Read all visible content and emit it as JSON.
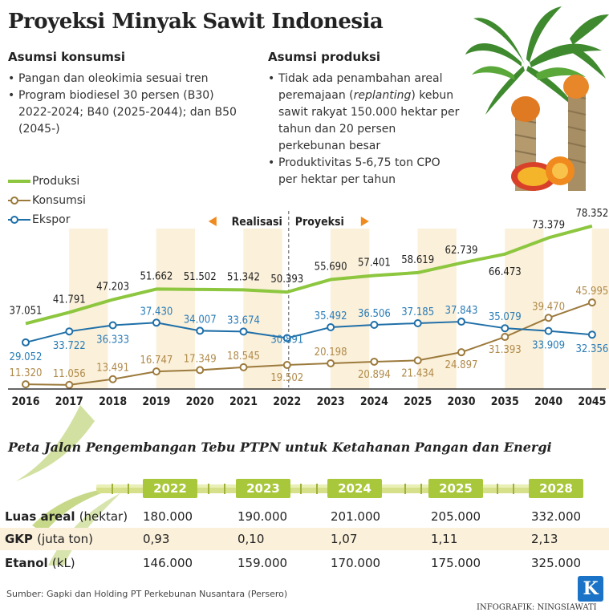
{
  "title": "Proyeksi Minyak Sawit Indonesia",
  "asumsi_konsumsi": {
    "heading": "Asumsi konsumsi",
    "items": [
      "Pangan dan oleokimia sesuai tren",
      "Program biodiesel 30 persen (B30) 2022-2024; B40 (2025-2044); dan B50 (2045-)"
    ]
  },
  "asumsi_produksi": {
    "heading": "Asumsi produksi",
    "item1_pre": "Tidak ada penambahan areal peremajaan (",
    "item1_italic": "replanting",
    "item1_post": ") kebun sawit rakyat 150.000 hektar per tahun dan 20 persen perkebunan besar",
    "item2": "Produktivitas 5-6,75 ton CPO per hektar per tahun"
  },
  "legend": {
    "produksi": "Produksi",
    "konsumsi": "Konsumsi",
    "ekspor": "Ekspor"
  },
  "phase_labels": {
    "realisasi": "Realisasi",
    "proyeksi": "Proyeksi"
  },
  "colors": {
    "produksi": "#8dc63f",
    "konsumsi": "#9c7a3c",
    "ekspor": "#1f6fa8",
    "label_konsumsi": "#b08a4a",
    "label_ekspor": "#2a7db8",
    "band": "#fbf0da",
    "badge": "#a8c73a",
    "logo": "#1a73c6"
  },
  "icons": {
    "illustration": "oil-palm-tree-icon",
    "logo": "k-logo-icon"
  },
  "chart_data": {
    "type": "line",
    "categories": [
      "2016",
      "2017",
      "2018",
      "2019",
      "2020",
      "2021",
      "2022",
      "2023",
      "2024",
      "2025",
      "2030",
      "2035",
      "2040",
      "2045"
    ],
    "series": [
      {
        "name": "Produksi",
        "values": [
          37.051,
          41.791,
          47.203,
          51.662,
          51.502,
          51.342,
          50.393,
          55.69,
          57.401,
          58.619,
          62.739,
          66.473,
          73.379,
          78.352
        ],
        "labels": [
          "37.051",
          "41.791",
          "47.203",
          "51.662",
          "51.502",
          "51.342",
          "50.393",
          "55.690",
          "57.401",
          "58.619",
          "62.739",
          "66.473",
          "73.379",
          "78.352"
        ]
      },
      {
        "name": "Konsumsi",
        "values": [
          11.32,
          11.056,
          13.491,
          16.747,
          17.349,
          18.545,
          19.502,
          20.198,
          20.894,
          21.434,
          24.897,
          31.393,
          39.47,
          45.995
        ],
        "labels": [
          "11.320",
          "11.056",
          "13.491",
          "16.747",
          "17.349",
          "18.545",
          "19.502",
          "20.198",
          "20.894",
          "21.434",
          "24.897",
          "31.393",
          "39.470",
          "45.995"
        ]
      },
      {
        "name": "Ekspor",
        "values": [
          29.052,
          33.722,
          36.333,
          37.43,
          34.007,
          33.674,
          30.891,
          35.492,
          36.506,
          37.185,
          37.843,
          35.079,
          33.909,
          32.356
        ],
        "labels": [
          "29.052",
          "33.722",
          "36.333",
          "37.430",
          "34.007",
          "33.674",
          "30.891",
          "35.492",
          "36.506",
          "37.185",
          "37.843",
          "35.079",
          "33.909",
          "32.356"
        ]
      }
    ],
    "divider_after": "2022",
    "legend_position": "top-left",
    "grid": false
  },
  "roadmap": {
    "title": "Peta Jalan Pengembangan Tebu PTPN untuk Ketahanan Pangan dan Energi",
    "years": [
      "2022",
      "2023",
      "2024",
      "2025",
      "2028"
    ],
    "rows": [
      {
        "label": "Luas areal",
        "unit": "(hektar)",
        "values": [
          "180.000",
          "190.000",
          "201.000",
          "205.000",
          "332.000"
        ]
      },
      {
        "label": "GKP",
        "unit": "(juta ton)",
        "values": [
          "0,93",
          "0,10",
          "1,07",
          "1,11",
          "2,13"
        ]
      },
      {
        "label": "Etanol",
        "unit": "(kL)",
        "values": [
          "146.000",
          "159.000",
          "170.000",
          "175.000",
          "325.000"
        ]
      }
    ]
  },
  "source": "Sumber: Gapki dan Holding PT Perkebunan Nusantara (Persero)",
  "credit": "INFOGRAFIK: NINGSIAWATI",
  "logo_letter": "K"
}
